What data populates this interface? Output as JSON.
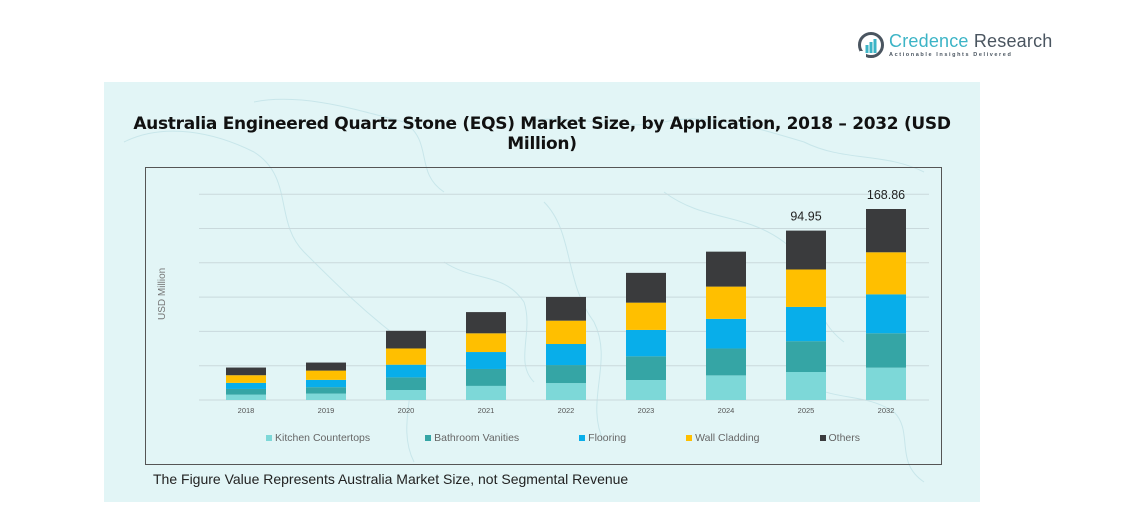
{
  "brand": {
    "name_part1": "Credence",
    "name_part2": "Research",
    "tagline": "Actionable Insights Delivered",
    "logo_icon": "bar-chart-circle-icon",
    "accent_color": "#3cb4c6"
  },
  "footnote": "The Figure Value Represents Australia Market Size, not Segmental Revenue",
  "chart_data": {
    "type": "bar",
    "stacked": true,
    "title": "Australia Engineered Quartz Stone (EQS) Market Size, by Application, 2018 – 2032 (USD Million)",
    "xlabel": "",
    "ylabel": "USD Million",
    "grid": true,
    "legend_position": "bottom",
    "categories": [
      "2018",
      "2019",
      "2020",
      "2021",
      "2022",
      "2023",
      "2024",
      "2025",
      "2032"
    ],
    "series": [
      {
        "name": "Kitchen Countertops",
        "color": "#7dd8d8",
        "values": [
          3.0,
          3.6,
          5.6,
          7.9,
          9.5,
          11.2,
          13.8,
          15.7,
          28.6
        ]
      },
      {
        "name": "Bathroom Vanities",
        "color": "#35a5a5",
        "values": [
          3.2,
          3.6,
          7.1,
          9.5,
          10.1,
          13.3,
          15.1,
          17.3,
          30.4
        ]
      },
      {
        "name": "Flooring",
        "color": "#08aeea",
        "values": [
          3.4,
          4.1,
          7.1,
          9.5,
          11.8,
          14.8,
          16.6,
          19.2,
          34.4
        ]
      },
      {
        "name": "Wall Cladding",
        "color": "#ffbf00",
        "values": [
          4.3,
          5.2,
          9.1,
          10.5,
          13.1,
          15.3,
          18.1,
          21.0,
          37.2
        ]
      },
      {
        "name": "Others",
        "color": "#3a3b3d",
        "values": [
          4.3,
          4.5,
          9.9,
          11.9,
          13.3,
          16.7,
          19.6,
          21.8,
          38.26
        ]
      }
    ],
    "totals": [
      18.2,
      21.0,
      38.8,
      49.3,
      57.8,
      71.3,
      83.2,
      94.95,
      168.86
    ],
    "data_labels": [
      {
        "category": "2025",
        "text": "94.95"
      },
      {
        "category": "2032",
        "text": "168.86"
      }
    ],
    "gridline_count": 6
  }
}
